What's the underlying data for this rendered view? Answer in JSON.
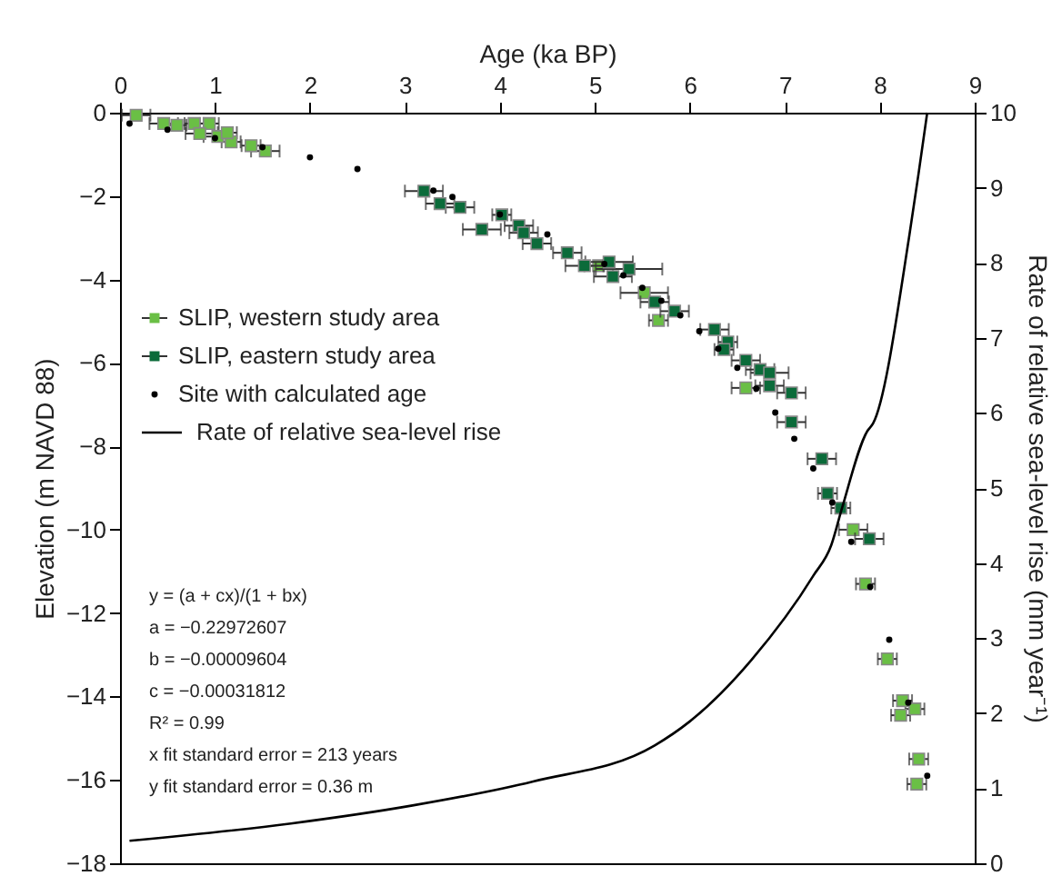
{
  "chart_data": {
    "type": "scatter",
    "xlabel": "Age (ka BP)",
    "ylabel": "Elevation (m NAVD 88)",
    "y2label": "Rate of relative sea-level rise (mm year⁻¹)",
    "xlim": [
      0,
      9
    ],
    "xticks": [
      0,
      1,
      2,
      3,
      4,
      5,
      6,
      7,
      8,
      9
    ],
    "ylim": [
      -18,
      0
    ],
    "yticks": [
      -18,
      -16,
      -14,
      -12,
      -10,
      -8,
      -6,
      -4,
      -2,
      0
    ],
    "y2lim": [
      0,
      10
    ],
    "y2ticks": [
      0,
      1,
      2,
      3,
      4,
      5,
      6,
      7,
      8,
      9,
      10
    ],
    "grid": false,
    "legend": "left",
    "series": [
      {
        "name": "SLIP, western study area",
        "marker": "square",
        "color": "#6abf45",
        "x": [
          0.17,
          0.46,
          0.6,
          0.78,
          0.94,
          0.84,
          1.03,
          1.17,
          1.38,
          1.53,
          1.13,
          5.04,
          5.52,
          5.67,
          6.59,
          7.72,
          7.85,
          8.08,
          8.24,
          8.22,
          8.41,
          8.39,
          8.37
        ],
        "values": [
          -0.06,
          -0.26,
          -0.3,
          -0.26,
          -0.26,
          -0.5,
          -0.57,
          -0.7,
          -0.79,
          -0.92,
          -0.48,
          -3.67,
          -4.32,
          -4.98,
          -6.6,
          -10.0,
          -11.3,
          -13.1,
          -14.1,
          -14.45,
          -15.5,
          -16.1,
          -14.3
        ],
        "xerrors": [
          0.15,
          0.15,
          0.1,
          0.1,
          0.1,
          0.15,
          0.15,
          0.1,
          0.1,
          0.15,
          0.1,
          0.15,
          0.25,
          0.1,
          0.15,
          0.15,
          0.1,
          0.1,
          0.1,
          0.1,
          0.1,
          0.1,
          0.1
        ]
      },
      {
        "name": "SLIP, eastern study area",
        "marker": "square",
        "color": "#0b6b3a",
        "x": [
          3.2,
          3.37,
          3.58,
          3.81,
          4.02,
          4.2,
          4.25,
          4.39,
          4.71,
          4.89,
          5.15,
          5.19,
          5.36,
          5.63,
          5.84,
          6.26,
          6.4,
          6.36,
          6.59,
          6.74,
          6.84,
          6.84,
          7.07,
          7.07,
          7.39,
          7.45,
          7.59,
          7.89
        ],
        "values": [
          -1.88,
          -2.18,
          -2.27,
          -2.8,
          -2.45,
          -2.71,
          -2.88,
          -3.14,
          -3.36,
          -3.67,
          -3.58,
          -3.93,
          -3.75,
          -4.54,
          -4.76,
          -5.2,
          -5.5,
          -5.68,
          -5.94,
          -6.16,
          -6.24,
          -6.55,
          -6.72,
          -7.42,
          -8.3,
          -9.13,
          -9.48,
          -10.22
        ],
        "xerrors": [
          0.2,
          0.15,
          0.15,
          0.2,
          0.1,
          0.15,
          0.15,
          0.15,
          0.15,
          0.2,
          0.25,
          0.2,
          0.35,
          0.15,
          0.15,
          0.15,
          0.1,
          0.1,
          0.15,
          0.15,
          0.2,
          0.15,
          0.15,
          0.15,
          0.15,
          0.1,
          0.1,
          0.15
        ]
      },
      {
        "name": "Site with calculated age",
        "marker": "circle",
        "color": "#000000",
        "x": [
          0.1,
          0.5,
          1.0,
          1.5,
          2.0,
          2.5,
          3.3,
          3.5,
          4.0,
          4.5,
          5.1,
          5.3,
          5.5,
          5.7,
          5.9,
          6.1,
          6.3,
          6.5,
          6.7,
          6.9,
          7.1,
          7.3,
          7.5,
          7.7,
          7.9,
          8.1,
          8.3,
          8.5
        ],
        "values": [
          -0.26,
          -0.41,
          -0.61,
          -0.83,
          -1.07,
          -1.35,
          -1.87,
          -2.02,
          -2.44,
          -2.92,
          -3.63,
          -3.9,
          -4.2,
          -4.51,
          -4.86,
          -5.24,
          -5.66,
          -6.12,
          -6.62,
          -7.19,
          -7.82,
          -8.53,
          -9.35,
          -10.29,
          -11.37,
          -12.64,
          -14.15,
          -15.9
        ]
      },
      {
        "name": "Rate of relative sea-level rise",
        "type": "line",
        "axis": "y2",
        "marker": "none",
        "line_style": "solid",
        "color": "#000000",
        "x": [
          0.1,
          1.8,
          3.08,
          4.35,
          5.63,
          6.0,
          6.65,
          7.3,
          7.49,
          7.6,
          7.87,
          7.93,
          8.31,
          8.41,
          8.5
        ],
        "values": [
          0.3,
          0.53,
          0.77,
          1.09,
          1.57,
          1.89,
          2.71,
          3.83,
          4.24,
          4.72,
          5.76,
          5.86,
          8.35,
          9.2,
          10.0
        ]
      }
    ],
    "annotations": [
      "y = (a + cx)/(1 + bx)",
      "a = −0.22972607",
      "b = −0.00009604",
      "c = −0.00031812",
      "R² = 0.99",
      "x fit standard error = 213 years",
      "y fit standard error = 0.36 m"
    ]
  }
}
